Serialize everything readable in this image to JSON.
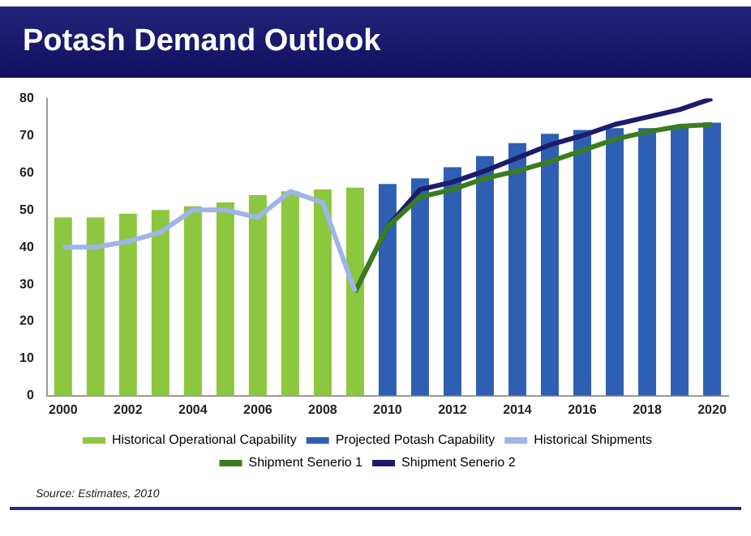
{
  "chart_data": {
    "type": "bar",
    "title": "Potash Demand Outlook",
    "categories": [
      "2000",
      null,
      "2002",
      null,
      "2004",
      null,
      "2006",
      null,
      "2008",
      null,
      "2010",
      null,
      "2012",
      null,
      "2014",
      null,
      "2016",
      null,
      "2018",
      null,
      "2020"
    ],
    "series": [
      {
        "name": "Historical Operational Capability",
        "color": "#8dc63f",
        "values": [
          48,
          48,
          49,
          50,
          51,
          52,
          54,
          55,
          55.5,
          56,
          null,
          null,
          null,
          null,
          null,
          null,
          null,
          null,
          null,
          null,
          null
        ]
      },
      {
        "name": "Projected Potash Capability",
        "color": "#2f5fb3",
        "values": [
          null,
          null,
          null,
          null,
          null,
          null,
          null,
          null,
          null,
          null,
          57,
          58.5,
          61.5,
          64.5,
          68,
          70.5,
          71.5,
          72,
          72,
          72.5,
          73.5
        ]
      },
      {
        "name": "Historical Shipments",
        "type": "line",
        "color": "#9db5e8",
        "values": [
          40,
          40,
          41.5,
          44,
          50,
          50,
          48,
          55,
          52,
          28,
          null,
          null,
          null,
          null,
          null,
          null,
          null,
          null,
          null,
          null,
          null
        ]
      },
      {
        "name": "Shipment Senerio 1",
        "type": "line",
        "color": "#3a7d1e",
        "values": [
          null,
          null,
          null,
          null,
          null,
          null,
          null,
          null,
          null,
          28,
          45.5,
          53.5,
          55.5,
          58.5,
          60.5,
          63,
          66,
          69,
          71,
          72.5,
          73
        ]
      },
      {
        "name": "Shipment Senerio 2",
        "type": "line",
        "color": "#1c1c6b",
        "values": [
          null,
          null,
          null,
          null,
          null,
          null,
          null,
          null,
          null,
          28,
          45.5,
          55.5,
          57.5,
          60.5,
          64,
          67.5,
          70,
          73,
          75,
          77,
          80
        ]
      }
    ],
    "ylim": [
      0,
      80
    ],
    "yticks": [
      0,
      10,
      20,
      30,
      40,
      50,
      60,
      70,
      80
    ],
    "legend": "bottom",
    "marker": "none",
    "annotations": [
      "Source: Estimates, 2010"
    ]
  }
}
